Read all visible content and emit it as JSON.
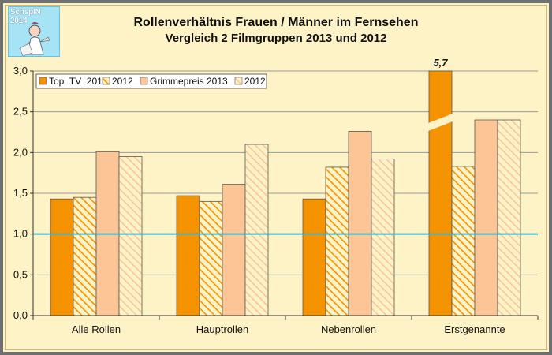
{
  "header": {
    "logo_text": "SchspIN 2014"
  },
  "chart_data": {
    "type": "bar",
    "title": "Rollenverhältnis Frauen / Männer im Fernsehen",
    "subtitle": "Vergleich 2 Filmgruppen 2013 und 2012",
    "categories": [
      "Alle Rollen",
      "Hauptrollen",
      "Nebenrollen",
      "Erstgenannte"
    ],
    "series": [
      {
        "name": "Top  TV  2013",
        "values": [
          1.43,
          1.47,
          1.43,
          5.7
        ],
        "color": "#f59200",
        "pattern": "solid"
      },
      {
        "name": "2012",
        "values": [
          1.45,
          1.4,
          1.82,
          1.83
        ],
        "color": "#f59200",
        "pattern": "hatch"
      },
      {
        "name": "Grimmepreis 2013",
        "values": [
          2.01,
          1.61,
          2.26,
          2.4
        ],
        "color": "#fcc595",
        "pattern": "solid"
      },
      {
        "name": "2012",
        "values": [
          1.95,
          2.1,
          1.92,
          2.4
        ],
        "color": "#fcc595",
        "pattern": "hatch"
      }
    ],
    "yticks": [
      "0,0",
      "0,5",
      "1,0",
      "1,5",
      "2,0",
      "2,5",
      "3,0"
    ],
    "ylim": [
      0,
      3.0
    ],
    "reference_line": {
      "value": 1.0,
      "color": "#3fb3c9"
    },
    "annotations": [
      {
        "text": "5,7",
        "series": 0,
        "category": 3
      }
    ],
    "axis_break": {
      "series": 0,
      "category": 3
    },
    "grid": true,
    "legend_position": "top-left"
  }
}
